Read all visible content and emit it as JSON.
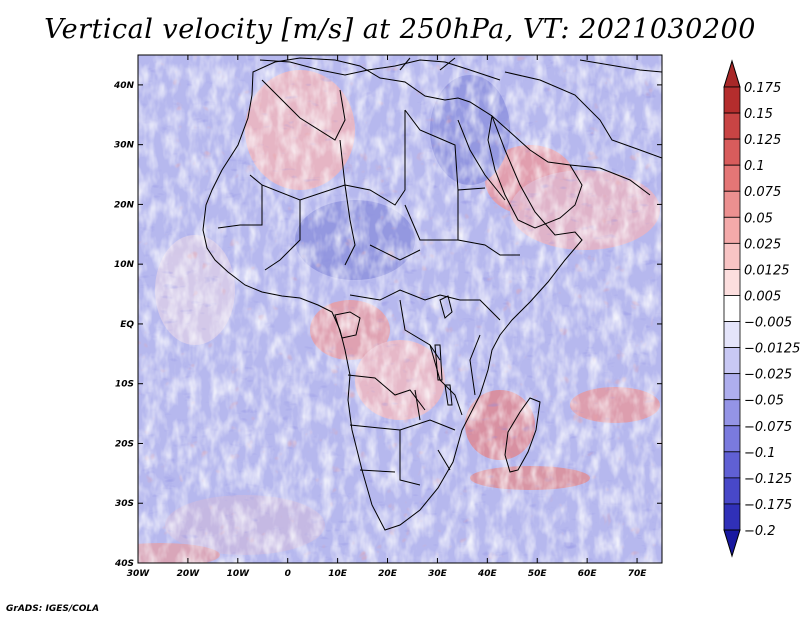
{
  "title": "Vertical velocity [m/s] at 250hPa, VT: 2021030200",
  "footer": "GrADS: IGES/COLA",
  "map": {
    "lon_range": [
      -30,
      75
    ],
    "lat_range": [
      -40,
      45
    ],
    "lon_ticks": [
      {
        "value": -30,
        "label": "30W"
      },
      {
        "value": -20,
        "label": "20W"
      },
      {
        "value": -10,
        "label": "10W"
      },
      {
        "value": 0,
        "label": "0"
      },
      {
        "value": 10,
        "label": "10E"
      },
      {
        "value": 20,
        "label": "20E"
      },
      {
        "value": 30,
        "label": "30E"
      },
      {
        "value": 40,
        "label": "40E"
      },
      {
        "value": 50,
        "label": "50E"
      },
      {
        "value": 60,
        "label": "60E"
      },
      {
        "value": 70,
        "label": "70E"
      }
    ],
    "lat_ticks": [
      {
        "value": 40,
        "label": "40N"
      },
      {
        "value": 30,
        "label": "30N"
      },
      {
        "value": 20,
        "label": "20N"
      },
      {
        "value": 10,
        "label": "10N"
      },
      {
        "value": 0,
        "label": "EQ"
      },
      {
        "value": -10,
        "label": "10S"
      },
      {
        "value": -20,
        "label": "20S"
      },
      {
        "value": -30,
        "label": "30S"
      },
      {
        "value": -40,
        "label": "40S"
      }
    ]
  },
  "colorbar": {
    "entries": [
      {
        "label": "0.175",
        "color": "#b42d2d"
      },
      {
        "label": "0.15",
        "color": "#c84444"
      },
      {
        "label": "0.125",
        "color": "#d85c5c"
      },
      {
        "label": "0.1",
        "color": "#e47676"
      },
      {
        "label": "0.075",
        "color": "#ec9090"
      },
      {
        "label": "0.05",
        "color": "#f4aaaa"
      },
      {
        "label": "0.025",
        "color": "#f8c4c4"
      },
      {
        "label": "0.0125",
        "color": "#fcdede"
      },
      {
        "label": "0.005",
        "color": "#ffffff"
      },
      {
        "label": "-0.005",
        "color": "#e4e4fa"
      },
      {
        "label": "-0.0125",
        "color": "#c8c8f4"
      },
      {
        "label": "-0.025",
        "color": "#aeaeee"
      },
      {
        "label": "-0.05",
        "color": "#9494e6"
      },
      {
        "label": "-0.075",
        "color": "#7a7ade"
      },
      {
        "label": "-0.1",
        "color": "#6060d4"
      },
      {
        "label": "-0.125",
        "color": "#4848c8"
      },
      {
        "label": "-0.175",
        "color": "#3030b8"
      },
      {
        "label": "-0.2",
        "color": "#1c1ca4"
      }
    ],
    "top_color": "#a82828",
    "bottom_color": "#1818a0"
  }
}
